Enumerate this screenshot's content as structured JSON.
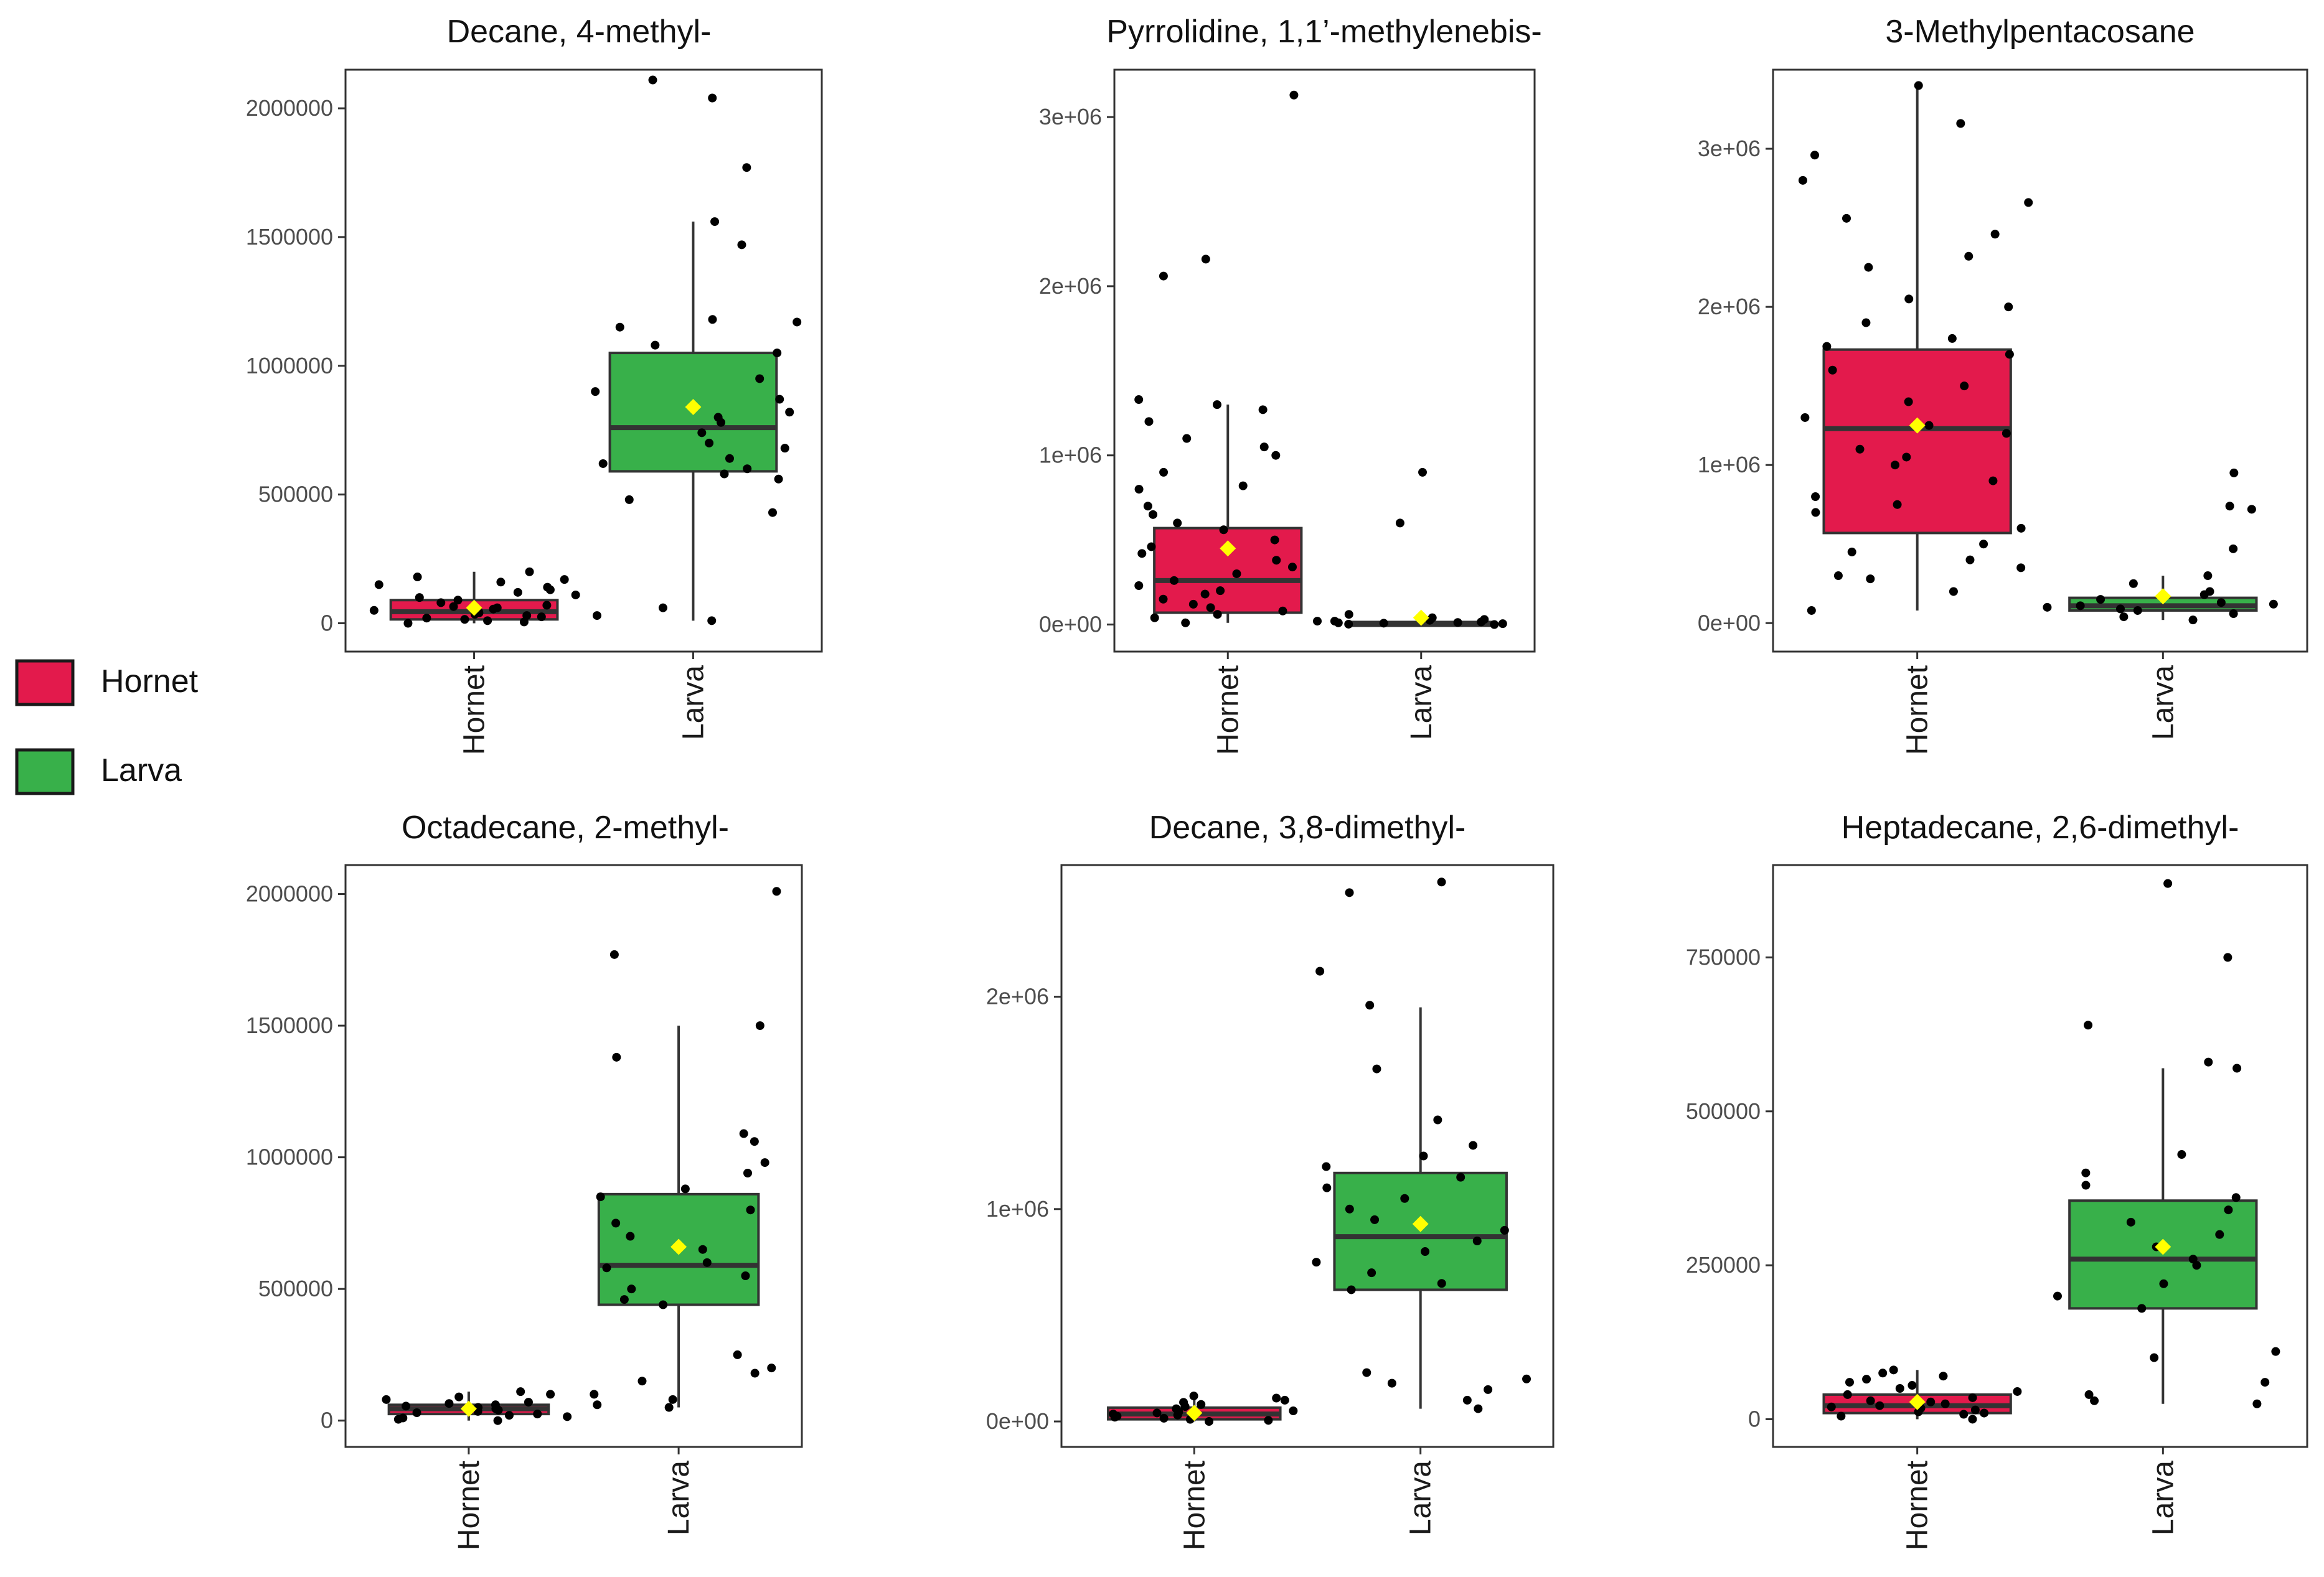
{
  "colors": {
    "hornet": "#e31a4c",
    "larva": "#38b04a",
    "mean_marker": "#ffff00",
    "points": "#000000"
  },
  "legend": {
    "items": [
      {
        "label": "Hornet",
        "color": "#e31a4c"
      },
      {
        "label": "Larva",
        "color": "#38b04a"
      }
    ]
  },
  "chart_data": [
    {
      "type": "box",
      "title": "Decane, 4-methyl-",
      "categories": [
        "Hornet",
        "Larva"
      ],
      "ylim": [
        -110000,
        2150000
      ],
      "yticks": [
        0,
        500000,
        1000000,
        1500000,
        2000000
      ],
      "ytick_labels": [
        "0",
        "500000",
        "1000000",
        "1500000",
        "2000000"
      ],
      "boxes": [
        {
          "group": "Hornet",
          "q1": 15000,
          "median": 45000,
          "q3": 90000,
          "whisker_low": 0,
          "whisker_high": 200000,
          "mean": 60000,
          "points": [
            0,
            5000,
            10000,
            15000,
            20000,
            25000,
            30000,
            35000,
            40000,
            45000,
            50000,
            55000,
            60000,
            65000,
            70000,
            80000,
            90000,
            100000,
            110000,
            120000,
            130000,
            140000,
            150000,
            160000,
            170000,
            180000,
            200000
          ]
        },
        {
          "group": "Larva",
          "q1": 590000,
          "median": 760000,
          "q3": 1050000,
          "whisker_low": 10000,
          "whisker_high": 1560000,
          "mean": 840000,
          "points": [
            10000,
            30000,
            60000,
            430000,
            480000,
            560000,
            580000,
            600000,
            620000,
            640000,
            680000,
            700000,
            740000,
            780000,
            800000,
            820000,
            870000,
            900000,
            950000,
            1050000,
            1080000,
            1150000,
            1170000,
            1180000,
            1470000,
            1560000,
            1770000,
            2040000,
            2110000
          ]
        }
      ]
    },
    {
      "type": "box",
      "title": "Pyrrolidine, 1,1’-methylenebis-",
      "categories": [
        "Hornet",
        "Larva"
      ],
      "ylim": [
        -160000,
        3280000
      ],
      "yticks": [
        0,
        1000000,
        2000000,
        3000000
      ],
      "ytick_labels": [
        "0e+00",
        "1e+06",
        "2e+06",
        "3e+06"
      ],
      "boxes": [
        {
          "group": "Hornet",
          "q1": 70000,
          "median": 260000,
          "q3": 570000,
          "whisker_low": 10000,
          "whisker_high": 1300000,
          "mean": 450000,
          "points": [
            10000,
            20000,
            40000,
            60000,
            80000,
            100000,
            120000,
            150000,
            180000,
            200000,
            230000,
            260000,
            300000,
            340000,
            380000,
            420000,
            460000,
            500000,
            560000,
            600000,
            650000,
            700000,
            800000,
            820000,
            900000,
            1000000,
            1050000,
            1100000,
            1200000,
            1270000,
            1300000,
            1330000,
            2060000,
            2160000,
            3130000
          ]
        },
        {
          "group": "Larva",
          "q1": 0,
          "median": 5000,
          "q3": 15000,
          "whisker_low": 0,
          "whisker_high": 40000,
          "mean": 40000,
          "points": [
            0,
            2000,
            5000,
            8000,
            10000,
            12000,
            15000,
            20000,
            25000,
            30000,
            40000,
            60000,
            600000,
            900000
          ]
        }
      ]
    },
    {
      "type": "box",
      "title": "3-Methylpentacosane",
      "categories": [
        "Hornet",
        "Larva"
      ],
      "ylim": [
        -180000,
        3500000
      ],
      "yticks": [
        0,
        1000000,
        2000000,
        3000000
      ],
      "ytick_labels": [
        "0e+00",
        "1e+06",
        "2e+06",
        "3e+06"
      ],
      "boxes": [
        {
          "group": "Hornet",
          "q1": 570000,
          "median": 1230000,
          "q3": 1730000,
          "whisker_low": 80000,
          "whisker_high": 3400000,
          "mean": 1250000,
          "points": [
            80000,
            200000,
            280000,
            300000,
            350000,
            400000,
            450000,
            500000,
            600000,
            700000,
            750000,
            800000,
            900000,
            1000000,
            1050000,
            1100000,
            1200000,
            1250000,
            1300000,
            1400000,
            1500000,
            1600000,
            1700000,
            1750000,
            1800000,
            1900000,
            2000000,
            2050000,
            2250000,
            2320000,
            2460000,
            2560000,
            2660000,
            2800000,
            2960000,
            3160000,
            3400000
          ]
        },
        {
          "group": "Larva",
          "q1": 80000,
          "median": 110000,
          "q3": 160000,
          "whisker_low": 20000,
          "whisker_high": 300000,
          "mean": 170000,
          "points": [
            20000,
            40000,
            60000,
            80000,
            90000,
            100000,
            110000,
            120000,
            130000,
            150000,
            180000,
            200000,
            250000,
            300000,
            470000,
            720000,
            740000,
            950000
          ]
        }
      ]
    },
    {
      "type": "box",
      "title": "Octadecane, 2-methyl-",
      "categories": [
        "Hornet",
        "Larva"
      ],
      "ylim": [
        -100000,
        2110000
      ],
      "yticks": [
        0,
        500000,
        1000000,
        1500000,
        2000000
      ],
      "ytick_labels": [
        "0",
        "500000",
        "1000000",
        "1500000",
        "2000000"
      ],
      "boxes": [
        {
          "group": "Hornet",
          "q1": 25000,
          "median": 45000,
          "q3": 60000,
          "whisker_low": 0,
          "whisker_high": 110000,
          "mean": 45000,
          "points": [
            0,
            5000,
            10000,
            15000,
            20000,
            25000,
            30000,
            35000,
            40000,
            45000,
            50000,
            55000,
            60000,
            65000,
            70000,
            80000,
            90000,
            100000,
            110000
          ]
        },
        {
          "group": "Larva",
          "q1": 440000,
          "median": 590000,
          "q3": 860000,
          "whisker_low": 50000,
          "whisker_high": 1500000,
          "mean": 660000,
          "points": [
            50000,
            60000,
            80000,
            100000,
            150000,
            180000,
            200000,
            250000,
            440000,
            460000,
            500000,
            550000,
            580000,
            600000,
            650000,
            700000,
            750000,
            800000,
            850000,
            880000,
            940000,
            980000,
            1060000,
            1090000,
            1380000,
            1500000,
            1770000,
            2010000
          ]
        }
      ]
    },
    {
      "type": "box",
      "title": "Decane, 3,8-dimethyl-",
      "categories": [
        "Hornet",
        "Larva"
      ],
      "ylim": [
        -120000,
        2620000
      ],
      "yticks": [
        0,
        1000000,
        2000000
      ],
      "ytick_labels": [
        "0e+00",
        "1e+06",
        "2e+06"
      ],
      "boxes": [
        {
          "group": "Hornet",
          "q1": 10000,
          "median": 35000,
          "q3": 65000,
          "whisker_low": 0,
          "whisker_high": 120000,
          "mean": 40000,
          "points": [
            0,
            5000,
            10000,
            15000,
            20000,
            25000,
            30000,
            35000,
            40000,
            45000,
            50000,
            60000,
            70000,
            80000,
            90000,
            100000,
            110000,
            120000
          ]
        },
        {
          "group": "Larva",
          "q1": 620000,
          "median": 870000,
          "q3": 1170000,
          "whisker_low": 60000,
          "whisker_high": 1950000,
          "mean": 930000,
          "points": [
            60000,
            100000,
            150000,
            180000,
            200000,
            230000,
            620000,
            650000,
            700000,
            750000,
            800000,
            850000,
            900000,
            950000,
            1000000,
            1050000,
            1100000,
            1150000,
            1200000,
            1250000,
            1300000,
            1420000,
            1660000,
            1960000,
            2120000,
            2490000,
            2540000
          ]
        }
      ]
    },
    {
      "type": "box",
      "title": "Heptadecane, 2,6-dimethyl-",
      "categories": [
        "Hornet",
        "Larva"
      ],
      "ylim": [
        -45000,
        900000
      ],
      "yticks": [
        0,
        250000,
        500000,
        750000
      ],
      "ytick_labels": [
        "0",
        "250000",
        "500000",
        "750000"
      ],
      "boxes": [
        {
          "group": "Hornet",
          "q1": 10000,
          "median": 22000,
          "q3": 40000,
          "whisker_low": 0,
          "whisker_high": 80000,
          "mean": 28000,
          "points": [
            0,
            5000,
            8000,
            10000,
            12000,
            15000,
            18000,
            20000,
            22000,
            25000,
            28000,
            30000,
            35000,
            40000,
            45000,
            50000,
            55000,
            60000,
            65000,
            70000,
            75000,
            80000
          ]
        },
        {
          "group": "Larva",
          "q1": 180000,
          "median": 260000,
          "q3": 355000,
          "whisker_low": 25000,
          "whisker_high": 570000,
          "mean": 280000,
          "points": [
            25000,
            30000,
            40000,
            60000,
            100000,
            110000,
            180000,
            200000,
            220000,
            250000,
            260000,
            280000,
            300000,
            320000,
            340000,
            360000,
            380000,
            400000,
            430000,
            570000,
            580000,
            640000,
            750000,
            870000
          ]
        }
      ]
    }
  ]
}
